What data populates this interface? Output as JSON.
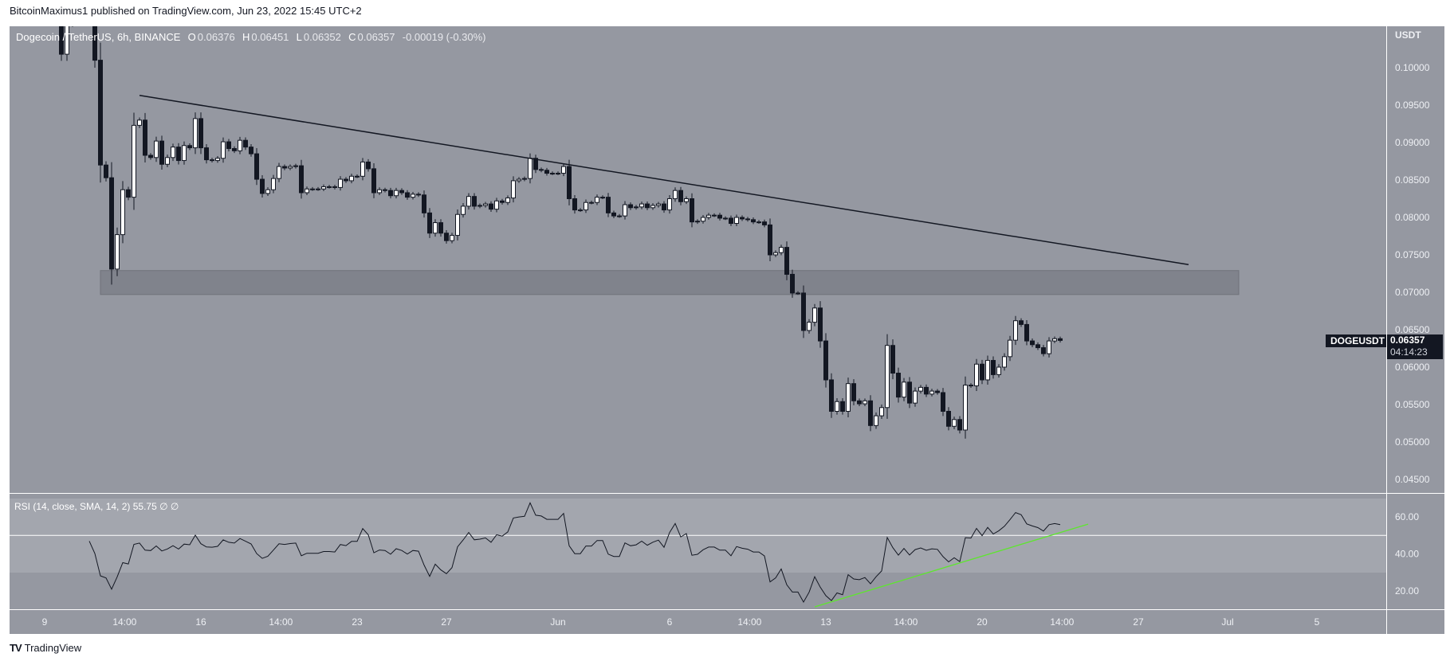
{
  "attribution": "BitcoinMaximus1 published on TradingView.com, Jun 23, 2022 15:45 UTC+2",
  "legend": {
    "symbol": "Dogecoin / TetherUS, 6h, BINANCE",
    "open_label": "O",
    "open": "0.06376",
    "high_label": "H",
    "high": "0.06451",
    "low_label": "L",
    "low": "0.06352",
    "close_label": "C",
    "close": "0.06357",
    "change": "-0.00019 (-0.30%)"
  },
  "rsi_legend": {
    "label": "RSI (14, close, SMA, 14, 2)",
    "value": "55.75",
    "extra": "∅ ∅"
  },
  "price_axis": {
    "currency": "USDT",
    "ticks": [
      "0.10000",
      "0.09500",
      "0.09000",
      "0.08500",
      "0.08000",
      "0.07500",
      "0.07000",
      "0.06500",
      "0.06000",
      "0.05500",
      "0.05000",
      "0.04500"
    ]
  },
  "rsi_axis": {
    "ticks": [
      "60.00",
      "40.00",
      "20.00"
    ]
  },
  "last_price": {
    "symbol": "DOGEUSDT",
    "price": "0.06357",
    "countdown": "04:14:23"
  },
  "time_axis": {
    "ticks": [
      {
        "label": "9",
        "date": "2022-05-09T00:00"
      },
      {
        "label": "14:00",
        "date": "2022-05-12T14:00"
      },
      {
        "label": "16",
        "date": "2022-05-16T00:00"
      },
      {
        "label": "14:00",
        "date": "2022-05-19T14:00"
      },
      {
        "label": "23",
        "date": "2022-05-23T00:00"
      },
      {
        "label": "27",
        "date": "2022-05-27T00:00"
      },
      {
        "label": "Jun",
        "date": "2022-06-01T00:00"
      },
      {
        "label": "6",
        "date": "2022-06-06T00:00"
      },
      {
        "label": "14:00",
        "date": "2022-06-09T14:00"
      },
      {
        "label": "13",
        "date": "2022-06-13T00:00"
      },
      {
        "label": "14:00",
        "date": "2022-06-16T14:00"
      },
      {
        "label": "20",
        "date": "2022-06-20T00:00"
      },
      {
        "label": "14:00",
        "date": "2022-06-23T14:00"
      },
      {
        "label": "27",
        "date": "2022-06-27T00:00"
      },
      {
        "label": "Jul",
        "date": "2022-07-01T00:00"
      },
      {
        "label": "5",
        "date": "2022-07-05T00:00"
      }
    ]
  },
  "logo": {
    "text": "TradingView"
  },
  "colors": {
    "background": "#9598a1",
    "rsi_band": "#a3a6ae",
    "zone": "#80838c",
    "up_candle": "#ffffff",
    "down_candle": "#131722",
    "trendline": "#131722",
    "rsi_line": "#131722",
    "rsi_support": "#5ee62e",
    "divider": "#ffffff"
  },
  "chart_data": {
    "type": "candlestick",
    "symbol": "DOGEUSDT",
    "interval": "6h",
    "ylim": [
      0.0425,
      0.1055
    ],
    "grid": false,
    "days": [
      {
        "date": "2022-05-07",
        "close": [
          null,
          null,
          0.108,
          0.11
        ]
      },
      {
        "date": "2022-05-08",
        "close": [
          0.107,
          0.109,
          0.111,
          0.108
        ]
      },
      {
        "date": "2022-05-09",
        "close": [
          0.11,
          0.107,
          0.106,
          0.1018
        ]
      },
      {
        "date": "2022-05-10",
        "close": [
          0.106,
          0.108,
          0.109,
          0.107
        ]
      },
      {
        "date": "2022-05-11",
        "close": [
          0.106,
          0.101,
          0.087,
          0.0853
        ]
      },
      {
        "date": "2022-05-12",
        "close": [
          0.0731,
          0.0777,
          0.0837,
          0.0827
        ]
      },
      {
        "date": "2022-05-13",
        "close": [
          0.0923,
          0.093,
          0.0883,
          0.088
        ]
      },
      {
        "date": "2022-05-14",
        "close": [
          0.0902,
          0.0871,
          0.088,
          0.0894
        ]
      },
      {
        "date": "2022-05-15",
        "close": [
          0.0876,
          0.0896,
          0.0893,
          0.0932
        ]
      },
      {
        "date": "2022-05-16",
        "close": [
          0.0893,
          0.0877,
          0.0876,
          0.0879
        ]
      },
      {
        "date": "2022-05-17",
        "close": [
          0.0901,
          0.0892,
          0.0889,
          0.0903
        ]
      },
      {
        "date": "2022-05-18",
        "close": [
          0.0894,
          0.0885,
          0.0851,
          0.0832
        ]
      },
      {
        "date": "2022-05-19",
        "close": [
          0.0837,
          0.0852,
          0.0868,
          0.0866
        ]
      },
      {
        "date": "2022-05-20",
        "close": [
          0.0868,
          0.0869,
          0.0833,
          0.0838
        ]
      },
      {
        "date": "2022-05-21",
        "close": [
          0.0838,
          0.0838,
          0.0841,
          0.0841
        ]
      },
      {
        "date": "2022-05-22",
        "close": [
          0.084,
          0.0851,
          0.0849,
          0.0855
        ]
      },
      {
        "date": "2022-05-23",
        "close": [
          0.0855,
          0.0874,
          0.0865,
          0.0833
        ]
      },
      {
        "date": "2022-05-24",
        "close": [
          0.0837,
          0.0836,
          0.0829,
          0.0836
        ]
      },
      {
        "date": "2022-05-25",
        "close": [
          0.0833,
          0.0827,
          0.0831,
          0.083
        ]
      },
      {
        "date": "2022-05-26",
        "close": [
          0.0806,
          0.0779,
          0.0793,
          0.0779
        ]
      },
      {
        "date": "2022-05-27",
        "close": [
          0.0769,
          0.0776,
          0.0804,
          0.0815
        ]
      },
      {
        "date": "2022-05-28",
        "close": [
          0.0828,
          0.0815,
          0.0816,
          0.0818
        ]
      },
      {
        "date": "2022-05-29",
        "close": [
          0.0811,
          0.0822,
          0.082,
          0.0826
        ]
      },
      {
        "date": "2022-05-30",
        "close": [
          0.0849,
          0.0851,
          0.0852,
          0.0879
        ]
      },
      {
        "date": "2022-05-31",
        "close": [
          0.0864,
          0.0863,
          0.0859,
          0.0859
        ]
      },
      {
        "date": "2022-06-01",
        "close": [
          0.0859,
          0.0868,
          0.0825,
          0.081
        ]
      },
      {
        "date": "2022-06-02",
        "close": [
          0.081,
          0.082,
          0.082,
          0.0827
        ]
      },
      {
        "date": "2022-06-03",
        "close": [
          0.0827,
          0.0806,
          0.0802,
          0.0802
        ]
      },
      {
        "date": "2022-06-04",
        "close": [
          0.0817,
          0.0813,
          0.0814,
          0.0818
        ]
      },
      {
        "date": "2022-06-05",
        "close": [
          0.0813,
          0.0816,
          0.0818,
          0.081
        ]
      },
      {
        "date": "2022-06-06",
        "close": [
          0.0825,
          0.0836,
          0.0821,
          0.0825
        ]
      },
      {
        "date": "2022-06-07",
        "close": [
          0.0794,
          0.0795,
          0.08,
          0.0803
        ]
      },
      {
        "date": "2022-06-08",
        "close": [
          0.0803,
          0.0799,
          0.0799,
          0.0792
        ]
      },
      {
        "date": "2022-06-09",
        "close": [
          0.08,
          0.0798,
          0.0797,
          0.0794
        ]
      },
      {
        "date": "2022-06-10",
        "close": [
          0.0794,
          0.079,
          0.075,
          0.0753
        ]
      },
      {
        "date": "2022-06-11",
        "close": [
          0.076,
          0.0724,
          0.0699,
          0.0699
        ]
      },
      {
        "date": "2022-06-12",
        "close": [
          0.0649,
          0.066,
          0.0679,
          0.0635
        ]
      },
      {
        "date": "2022-06-13",
        "close": [
          0.0583,
          0.0541,
          0.0554,
          0.0541
        ]
      },
      {
        "date": "2022-06-14",
        "close": [
          0.0578,
          0.0555,
          0.0551,
          0.0555
        ]
      },
      {
        "date": "2022-06-15",
        "close": [
          0.0522,
          0.0535,
          0.0546,
          0.0629
        ]
      },
      {
        "date": "2022-06-16",
        "close": [
          0.0592,
          0.056,
          0.058,
          0.0552
        ]
      },
      {
        "date": "2022-06-17",
        "close": [
          0.0568,
          0.0573,
          0.0564,
          0.0568
        ]
      },
      {
        "date": "2022-06-18",
        "close": [
          0.0566,
          0.0541,
          0.0521,
          0.053
        ]
      },
      {
        "date": "2022-06-19",
        "close": [
          0.0516,
          0.0576,
          0.0575,
          0.0604
        ]
      },
      {
        "date": "2022-06-20",
        "close": [
          0.0583,
          0.0609,
          0.059,
          0.06
        ]
      },
      {
        "date": "2022-06-21",
        "close": [
          0.0614,
          0.0636,
          0.0662,
          0.0657
        ]
      },
      {
        "date": "2022-06-22",
        "close": [
          0.0635,
          0.063,
          0.0626,
          0.0618
        ]
      },
      {
        "date": "2022-06-23",
        "close": [
          0.0635,
          0.0638,
          0.06357,
          null
        ]
      }
    ],
    "descending_trendline": {
      "from": {
        "date": "2022-05-13T06:00",
        "price": 0.0963
      },
      "to": {
        "date": "2022-06-29T06:00",
        "price": 0.0737
      }
    },
    "support_zone": {
      "from_date": "2022-05-11T12:00",
      "to_date": "2022-07-01T12:00",
      "low": 0.0697,
      "high": 0.0729
    },
    "rsi": {
      "period": 14,
      "source": "close",
      "levels": [
        30,
        50,
        70
      ],
      "ylim": [
        8,
        66
      ],
      "last": 55.75
    },
    "rsi_support_line": {
      "from": {
        "date": "2022-06-12T12:00",
        "value": 11.4
      },
      "to": {
        "date": "2022-06-24T18:00",
        "value": 56.1
      }
    }
  }
}
